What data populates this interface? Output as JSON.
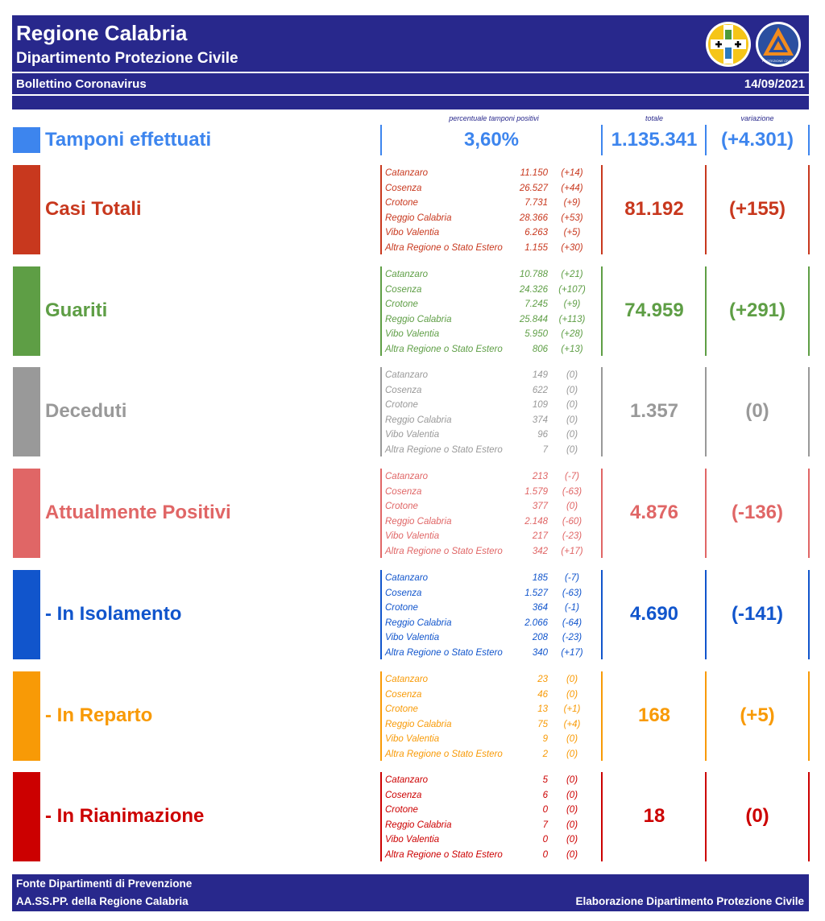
{
  "header": {
    "title": "Regione Calabria",
    "subtitle": "Dipartimento Protezione Civile",
    "bulletin": "Bollettino Coronavirus",
    "date": "14/09/2021",
    "logo_text": "PROTEZIONE CIVILE"
  },
  "captions": {
    "pct": "percentuale tamponi positivi",
    "total": "totale",
    "variation": "variazione"
  },
  "tamponi": {
    "label": "Tamponi effettuati",
    "pct": "3,60%",
    "total": "1.135.341",
    "variation": "(+4.301)",
    "color": "#3d85ee"
  },
  "sections": [
    {
      "label": "Casi Totali",
      "color": "#c8381e",
      "total": "81.192",
      "variation": "(+155)",
      "rows": [
        {
          "name": "Catanzaro",
          "value": "11.150",
          "var": "(+14)"
        },
        {
          "name": "Cosenza",
          "value": "26.527",
          "var": "(+44)"
        },
        {
          "name": "Crotone",
          "value": "7.731",
          "var": "(+9)"
        },
        {
          "name": "Reggio Calabria",
          "value": "28.366",
          "var": "(+53)"
        },
        {
          "name": "Vibo Valentia",
          "value": "6.263",
          "var": "(+5)"
        },
        {
          "name": "Altra Regione o Stato Estero",
          "value": "1.155",
          "var": "(+30)"
        }
      ]
    },
    {
      "label": "Guariti",
      "color": "#5e9e45",
      "total": "74.959",
      "variation": "(+291)",
      "rows": [
        {
          "name": "Catanzaro",
          "value": "10.788",
          "var": "(+21)"
        },
        {
          "name": "Cosenza",
          "value": "24.326",
          "var": "(+107)"
        },
        {
          "name": "Crotone",
          "value": "7.245",
          "var": "(+9)"
        },
        {
          "name": "Reggio Calabria",
          "value": "25.844",
          "var": "(+113)"
        },
        {
          "name": "Vibo Valentia",
          "value": "5.950",
          "var": "(+28)"
        },
        {
          "name": "Altra Regione o Stato Estero",
          "value": "806",
          "var": "(+13)"
        }
      ]
    },
    {
      "label": "Deceduti",
      "color": "#999999",
      "total": "1.357",
      "variation": "(0)",
      "rows": [
        {
          "name": "Catanzaro",
          "value": "149",
          "var": "(0)"
        },
        {
          "name": "Cosenza",
          "value": "622",
          "var": "(0)"
        },
        {
          "name": "Crotone",
          "value": "109",
          "var": "(0)"
        },
        {
          "name": "Reggio Calabria",
          "value": "374",
          "var": "(0)"
        },
        {
          "name": "Vibo Valentia",
          "value": "96",
          "var": "(0)"
        },
        {
          "name": "Altra Regione o Stato Estero",
          "value": "7",
          "var": "(0)"
        }
      ]
    },
    {
      "label": "Attualmente Positivi",
      "color": "#e06666",
      "total": "4.876",
      "variation": "(-136)",
      "rows": [
        {
          "name": "Catanzaro",
          "value": "213",
          "var": "(-7)"
        },
        {
          "name": "Cosenza",
          "value": "1.579",
          "var": "(-63)"
        },
        {
          "name": "Crotone",
          "value": "377",
          "var": "(0)"
        },
        {
          "name": "Reggio Calabria",
          "value": "2.148",
          "var": "(-60)"
        },
        {
          "name": "Vibo Valentia",
          "value": "217",
          "var": "(-23)"
        },
        {
          "name": "Altra Regione o Stato Estero",
          "value": "342",
          "var": "(+17)"
        }
      ]
    },
    {
      "label": " - In Isolamento",
      "color": "#1155cc",
      "total": "4.690",
      "variation": "(-141)",
      "rows": [
        {
          "name": "Catanzaro",
          "value": "185",
          "var": "(-7)"
        },
        {
          "name": "Cosenza",
          "value": "1.527",
          "var": "(-63)"
        },
        {
          "name": "Crotone",
          "value": "364",
          "var": "(-1)"
        },
        {
          "name": "Reggio Calabria",
          "value": "2.066",
          "var": "(-64)"
        },
        {
          "name": "Vibo Valentia",
          "value": "208",
          "var": "(-23)"
        },
        {
          "name": "Altra Regione o Stato Estero",
          "value": "340",
          "var": "(+17)"
        }
      ]
    },
    {
      "label": " - In Reparto",
      "color": "#f89a06",
      "total": "168",
      "variation": "(+5)",
      "rows": [
        {
          "name": "Catanzaro",
          "value": "23",
          "var": "(0)"
        },
        {
          "name": "Cosenza",
          "value": "46",
          "var": "(0)"
        },
        {
          "name": "Crotone",
          "value": "13",
          "var": "(+1)"
        },
        {
          "name": "Reggio Calabria",
          "value": "75",
          "var": "(+4)"
        },
        {
          "name": "Vibo Valentia",
          "value": "9",
          "var": "(0)"
        },
        {
          "name": "Altra Regione o Stato Estero",
          "value": "2",
          "var": "(0)"
        }
      ]
    },
    {
      "label": " - In Rianimazione",
      "color": "#cc0000",
      "total": "18",
      "variation": "(0)",
      "rows": [
        {
          "name": "Catanzaro",
          "value": "5",
          "var": "(0)"
        },
        {
          "name": "Cosenza",
          "value": "6",
          "var": "(0)"
        },
        {
          "name": "Crotone",
          "value": "0",
          "var": "(0)"
        },
        {
          "name": "Reggio Calabria",
          "value": "7",
          "var": "(0)"
        },
        {
          "name": "Vibo Valentia",
          "value": "0",
          "var": "(0)"
        },
        {
          "name": "Altra Regione o Stato Estero",
          "value": "0",
          "var": "(0)"
        }
      ]
    }
  ],
  "footer": {
    "source_line1": "Fonte Dipartimenti di Prevenzione",
    "source_line2": "AA.SS.PP.  della Regione Calabria",
    "credit": "Elaborazione Dipartimento Protezione Civile"
  }
}
